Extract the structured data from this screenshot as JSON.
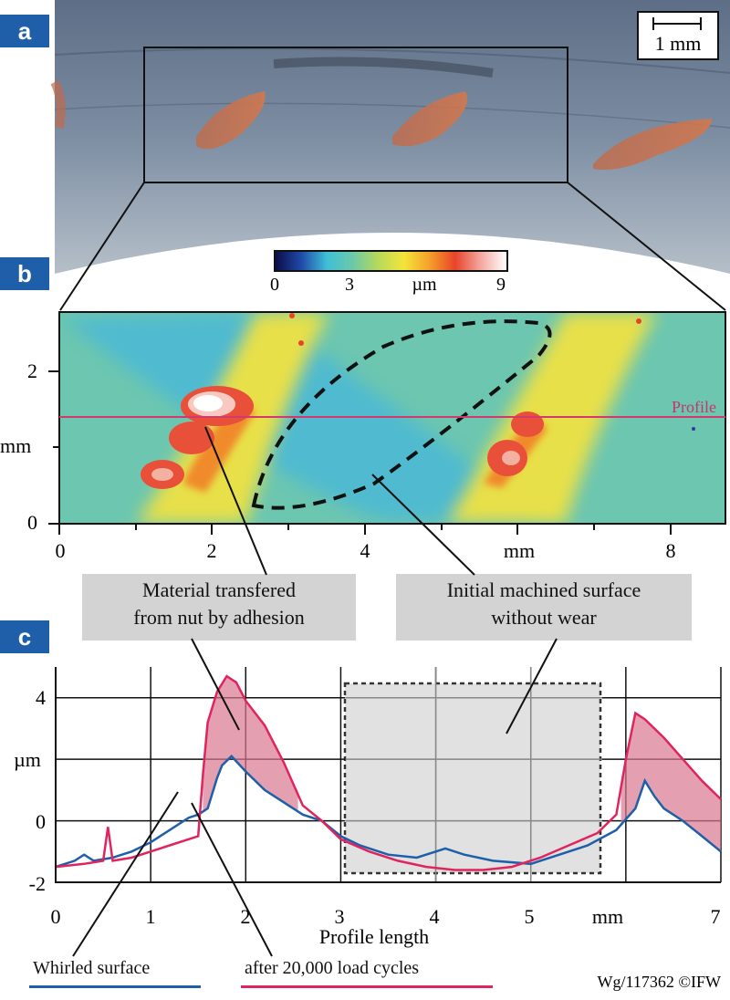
{
  "panels": {
    "a": "a",
    "b": "b",
    "c": "c"
  },
  "scale_bar": {
    "label": "1 mm"
  },
  "colorbar": {
    "ticks": [
      "0",
      "3",
      "9"
    ],
    "unit": "µm",
    "colors": [
      "#0b0d4a",
      "#1f4aa8",
      "#3fbfd8",
      "#6cc8a8",
      "#b7d95a",
      "#f3e53a",
      "#f5a02a",
      "#e8442a",
      "#f4a8a0",
      "#ffffff"
    ]
  },
  "height_map": {
    "x_ticks": [
      "0",
      "2",
      "4",
      "8"
    ],
    "x_unit": "mm",
    "y_ticks": [
      "0",
      "2"
    ],
    "y_unit": "mm",
    "profile_label": "Profile"
  },
  "callouts": {
    "adhesion": [
      "Material transfered",
      "from nut by adhesion"
    ],
    "initial": [
      "Initial machined surface",
      "without wear"
    ]
  },
  "chart_data": {
    "type": "line",
    "xlabel": "Profile length",
    "x_unit": "mm",
    "ylabel": "µm",
    "xlim": [
      0,
      7
    ],
    "ylim": [
      -2,
      5
    ],
    "x_ticks": [
      "0",
      "1",
      "2",
      "3",
      "4",
      "5",
      "7"
    ],
    "y_ticks": [
      "4",
      "0",
      "-2"
    ],
    "series": [
      {
        "name": "Whirled surface",
        "color": "#1d5fa8",
        "x": [
          0,
          0.2,
          0.3,
          0.4,
          0.6,
          0.8,
          1.0,
          1.2,
          1.4,
          1.5,
          1.6,
          1.7,
          1.75,
          1.85,
          2.0,
          2.2,
          2.4,
          2.6,
          2.8,
          3.0,
          3.2,
          3.5,
          3.8,
          4.0,
          4.1,
          4.3,
          4.6,
          5.0,
          5.3,
          5.6,
          5.9,
          6.1,
          6.2,
          6.3,
          6.4,
          6.6,
          6.8,
          7.0
        ],
        "y": [
          -1.5,
          -1.3,
          -1.1,
          -1.3,
          -1.2,
          -1.0,
          -0.7,
          -0.3,
          0.1,
          0.2,
          0.4,
          1.4,
          1.8,
          2.1,
          1.6,
          1.0,
          0.6,
          0.2,
          0.0,
          -0.5,
          -0.8,
          -1.1,
          -1.2,
          -1.0,
          -0.9,
          -1.1,
          -1.3,
          -1.4,
          -1.1,
          -0.8,
          -0.3,
          0.4,
          1.3,
          0.8,
          0.4,
          0.0,
          -0.5,
          -1.0
        ]
      },
      {
        "name": "after 20,000 load cycles",
        "color": "#e0245e",
        "x": [
          0,
          0.3,
          0.5,
          0.55,
          0.6,
          0.8,
          1.0,
          1.2,
          1.4,
          1.5,
          1.55,
          1.6,
          1.7,
          1.8,
          1.9,
          2.0,
          2.2,
          2.4,
          2.6,
          2.8,
          3.0,
          3.3,
          3.6,
          3.9,
          4.2,
          4.5,
          4.8,
          5.1,
          5.4,
          5.7,
          5.9,
          6.0,
          6.1,
          6.2,
          6.4,
          6.6,
          6.8,
          7.0
        ],
        "y": [
          -1.5,
          -1.4,
          -1.3,
          -0.2,
          -1.3,
          -1.2,
          -1.0,
          -0.8,
          -0.6,
          -0.5,
          1.5,
          3.2,
          4.2,
          4.7,
          4.5,
          3.9,
          3.1,
          1.9,
          0.5,
          0.0,
          -0.6,
          -1.0,
          -1.3,
          -1.5,
          -1.6,
          -1.6,
          -1.5,
          -1.2,
          -0.8,
          -0.4,
          0.2,
          2.0,
          3.5,
          3.3,
          2.7,
          2.0,
          1.3,
          0.7
        ]
      }
    ]
  },
  "credit": "Wg/117362 ©IFW"
}
